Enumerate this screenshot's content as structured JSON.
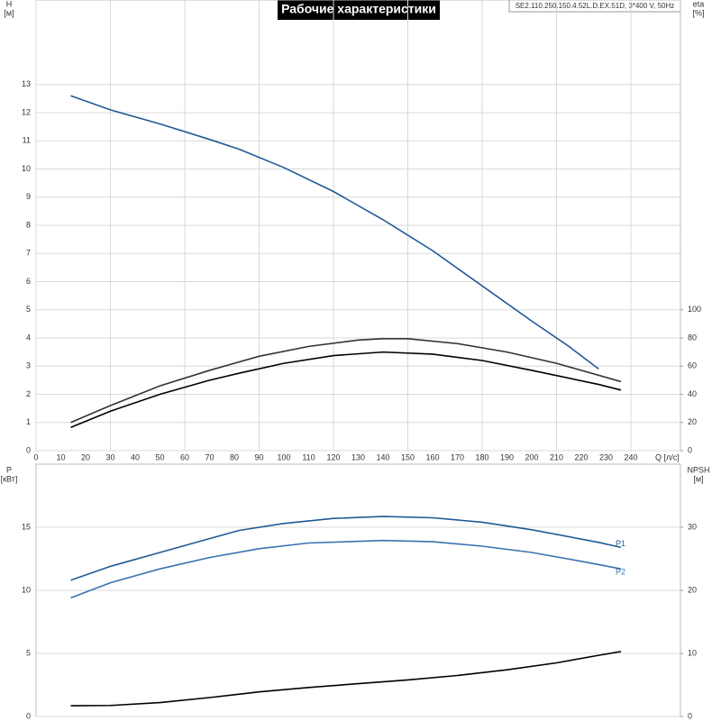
{
  "chart_data": [
    {
      "type": "line",
      "title": "Рабочие характеристики",
      "subtitle": "SE2.110.250.150.4.52L.D.EX.51D, 3*400 V, 50Hz",
      "y_label": "H",
      "y_unit": "[м]",
      "y2_label": "eta",
      "y2_unit": "[%]",
      "x_label": "Q [л/с]",
      "xlim": [
        0,
        260
      ],
      "xticks": [
        0,
        10,
        20,
        30,
        40,
        50,
        60,
        70,
        80,
        90,
        100,
        110,
        120,
        130,
        140,
        150,
        160,
        170,
        180,
        190,
        200,
        210,
        220,
        230,
        240
      ],
      "ylim": [
        0,
        16
      ],
      "yticks": [
        0,
        1,
        2,
        3,
        4,
        5,
        6,
        7,
        8,
        9,
        10,
        11,
        12,
        13
      ],
      "y2lim": [
        0,
        320
      ],
      "y2ticks": [
        0,
        20,
        40,
        60,
        80,
        100
      ],
      "grid": true,
      "series": [
        {
          "color": "#1f5a96",
          "x": [
            14,
            30,
            50,
            70,
            82,
            100,
            120,
            140,
            160,
            180,
            200,
            215,
            227
          ],
          "values": [
            12.6,
            12.1,
            11.6,
            11.05,
            10.7,
            10.05,
            9.2,
            8.2,
            7.1,
            5.85,
            4.6,
            3.7,
            2.9
          ]
        },
        {
          "color": "#333333",
          "axis": "y2",
          "x": [
            14,
            30,
            50,
            70,
            90,
            110,
            130,
            140,
            150,
            170,
            190,
            210,
            236
          ],
          "values": [
            20,
            32,
            46,
            57,
            67,
            74,
            78.5,
            79.5,
            79.5,
            76,
            70,
            62,
            49
          ]
        },
        {
          "color": "#000000",
          "axis": "y2",
          "x": [
            14,
            30,
            50,
            70,
            82,
            100,
            120,
            140,
            160,
            180,
            200,
            227,
            236
          ],
          "values": [
            16.5,
            28,
            40,
            50,
            55,
            62,
            67.5,
            70,
            68.5,
            64,
            57,
            47,
            43
          ]
        }
      ]
    },
    {
      "type": "line",
      "y_label": "P",
      "y_unit": "[кВт]",
      "y2_label": "NPSH",
      "y2_unit": "[м]",
      "xlim": [
        0,
        260
      ],
      "ylim": [
        0,
        20
      ],
      "yticks": [
        0,
        5,
        10,
        15
      ],
      "y2lim": [
        0,
        40
      ],
      "y2ticks": [
        0,
        10,
        20,
        30
      ],
      "grid": true,
      "series": [
        {
          "name": "P1",
          "color": "#1f5a96",
          "x": [
            14,
            30,
            50,
            70,
            82,
            100,
            120,
            140,
            160,
            180,
            200,
            227,
            236
          ],
          "values": [
            10.8,
            11.9,
            13.0,
            14.1,
            14.75,
            15.3,
            15.7,
            15.85,
            15.75,
            15.4,
            14.8,
            13.8,
            13.4
          ]
        },
        {
          "name": "P2",
          "color": "#3a72b0",
          "x": [
            14,
            30,
            50,
            70,
            90,
            110,
            140,
            160,
            180,
            200,
            220,
            236
          ],
          "values": [
            9.4,
            10.6,
            11.7,
            12.6,
            13.3,
            13.75,
            13.95,
            13.85,
            13.5,
            13.0,
            12.3,
            11.7
          ]
        },
        {
          "color": "#000000",
          "axis": "y2",
          "x": [
            14,
            30,
            50,
            70,
            90,
            110,
            130,
            150,
            170,
            190,
            210,
            227,
            236
          ],
          "values": [
            1.7,
            1.75,
            2.2,
            3.0,
            3.9,
            4.6,
            5.2,
            5.8,
            6.5,
            7.4,
            8.5,
            9.7,
            10.3
          ]
        }
      ]
    }
  ]
}
